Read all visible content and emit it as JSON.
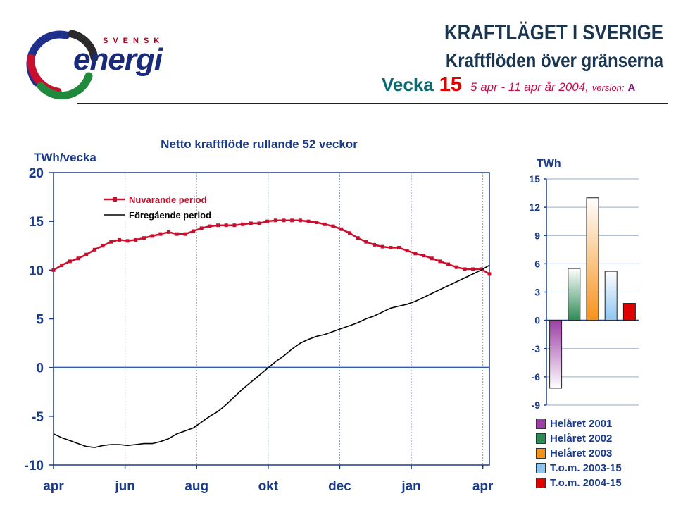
{
  "header": {
    "title": "KRAFTLÄGET I SVERIGE",
    "subtitle": "Kraftflöden över gränserna",
    "week_label": "Vecka",
    "week_number": "15",
    "date_range": "5 apr - 11 apr år 2004,",
    "version_label": "version:",
    "version": "A"
  },
  "brand": {
    "top": "SVENSK",
    "name": "energi",
    "logo_colors": [
      "#1e2f8c",
      "#c8102e",
      "#1f8a3c",
      "#2a2a2a"
    ]
  },
  "colors": {
    "axis_blue": "#1a3a8a",
    "current": "#c8102e",
    "previous": "#000000",
    "zero_line": "#2a5bd7"
  },
  "chart_data": [
    {
      "type": "line",
      "title": "Netto kraftflöde rullande 52 veckor",
      "ylabel": "TWh/vecka",
      "xlabel": "",
      "ylim": [
        -10,
        20
      ],
      "yticks": [
        -10,
        -5,
        0,
        5,
        10,
        15,
        20
      ],
      "xlim": [
        0,
        53
      ],
      "x_ticks": [
        {
          "x": 0,
          "label": "apr"
        },
        {
          "x": 8.7,
          "label": "jun"
        },
        {
          "x": 17.4,
          "label": "aug"
        },
        {
          "x": 26.1,
          "label": "okt"
        },
        {
          "x": 34.8,
          "label": "dec"
        },
        {
          "x": 43.5,
          "label": "jan"
        },
        {
          "x": 52.2,
          "label": "apr"
        }
      ],
      "grid": "vertical",
      "legend_position": "top-left",
      "series": [
        {
          "name": "Nuvarande period",
          "color": "#c8102e",
          "marker": "square",
          "x": [
            0,
            1,
            2,
            3,
            4,
            5,
            6,
            7,
            8,
            9,
            10,
            11,
            12,
            13,
            14,
            15,
            16,
            17,
            18,
            19,
            20,
            21,
            22,
            23,
            24,
            25,
            26,
            27,
            28,
            29,
            30,
            31,
            32,
            33,
            34,
            35,
            36,
            37,
            38,
            39,
            40,
            41,
            42,
            43,
            44,
            45,
            46,
            47,
            48,
            49,
            50,
            51,
            52,
            53
          ],
          "values": [
            10.0,
            10.5,
            10.9,
            11.2,
            11.6,
            12.1,
            12.5,
            12.9,
            13.1,
            13.0,
            13.1,
            13.3,
            13.5,
            13.7,
            13.9,
            13.7,
            13.7,
            14.0,
            14.3,
            14.5,
            14.6,
            14.6,
            14.6,
            14.7,
            14.8,
            14.8,
            15.0,
            15.1,
            15.1,
            15.1,
            15.1,
            15.0,
            14.9,
            14.7,
            14.5,
            14.2,
            13.8,
            13.3,
            12.9,
            12.6,
            12.4,
            12.3,
            12.3,
            12.0,
            11.7,
            11.5,
            11.2,
            10.9,
            10.6,
            10.3,
            10.1,
            10.1,
            10.1,
            9.6
          ]
        },
        {
          "name": "Föregående period",
          "color": "#000000",
          "marker": "none",
          "x": [
            0,
            1,
            2,
            3,
            4,
            5,
            6,
            7,
            8,
            9,
            10,
            11,
            12,
            13,
            14,
            15,
            16,
            17,
            18,
            19,
            20,
            21,
            22,
            23,
            24,
            25,
            26,
            27,
            28,
            29,
            30,
            31,
            32,
            33,
            34,
            35,
            36,
            37,
            38,
            39,
            40,
            41,
            42,
            43,
            44,
            45,
            46,
            47,
            48,
            49,
            50,
            51,
            52,
            53
          ],
          "values": [
            -6.8,
            -7.2,
            -7.5,
            -7.8,
            -8.1,
            -8.2,
            -8.0,
            -7.9,
            -7.9,
            -8.0,
            -7.9,
            -7.8,
            -7.8,
            -7.6,
            -7.3,
            -6.8,
            -6.5,
            -6.2,
            -5.6,
            -5.0,
            -4.5,
            -3.8,
            -3.0,
            -2.2,
            -1.5,
            -0.8,
            -0.1,
            0.6,
            1.2,
            1.9,
            2.5,
            2.9,
            3.2,
            3.4,
            3.7,
            4.0,
            4.3,
            4.6,
            5.0,
            5.3,
            5.7,
            6.1,
            6.3,
            6.5,
            6.8,
            7.2,
            7.6,
            8.0,
            8.4,
            8.8,
            9.2,
            9.6,
            10.0,
            10.5
          ]
        }
      ]
    },
    {
      "type": "bar",
      "ylabel": "TWh",
      "ylim": [
        -9,
        15
      ],
      "yticks": [
        15,
        12,
        9,
        6,
        3,
        0,
        -3,
        -6,
        -9
      ],
      "grid": "horizontal",
      "legend_position": "bottom",
      "categories": [
        "Helåret 2001",
        "Helåret 2002",
        "Helåret 2003",
        "T.o.m. 2003-15",
        "T.o.m. 2004-15"
      ],
      "values": [
        -7.2,
        5.5,
        13.0,
        5.2,
        1.8
      ],
      "colors": [
        "#9c3fa6",
        "#2e8b57",
        "#f5921e",
        "#8ec5f0",
        "#e00000"
      ]
    }
  ]
}
